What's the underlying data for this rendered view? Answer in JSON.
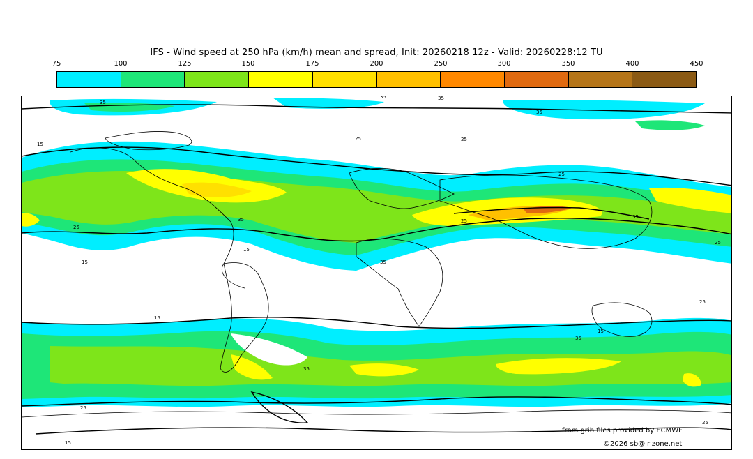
{
  "title": "IFS - Wind speed at 250 hPa (km/h) mean and spread, Init: 20260218 12z - Valid: 20260228:12 TU",
  "colorbar": {
    "ticks": [
      "75",
      "100",
      "125",
      "150",
      "175",
      "200",
      "250",
      "300",
      "350",
      "400",
      "450"
    ],
    "colors": [
      "#00eeff",
      "#1ee678",
      "#7ee51a",
      "#ffff00",
      "#ffe000",
      "#ffc000",
      "#ff8800",
      "#e06a10",
      "#b57519",
      "#8b5a14"
    ]
  },
  "contour_labels": [
    "35",
    "35",
    "35",
    "35",
    "25",
    "25",
    "15",
    "25",
    "35",
    "25",
    "35",
    "25",
    "25",
    "15",
    "15",
    "35",
    "25",
    "15",
    "35",
    "35",
    "15",
    "25",
    "15",
    "25"
  ],
  "credits": {
    "grib": "from grib files provided by ECMWF",
    "copyright": "©2026 sb@irizone.net"
  }
}
